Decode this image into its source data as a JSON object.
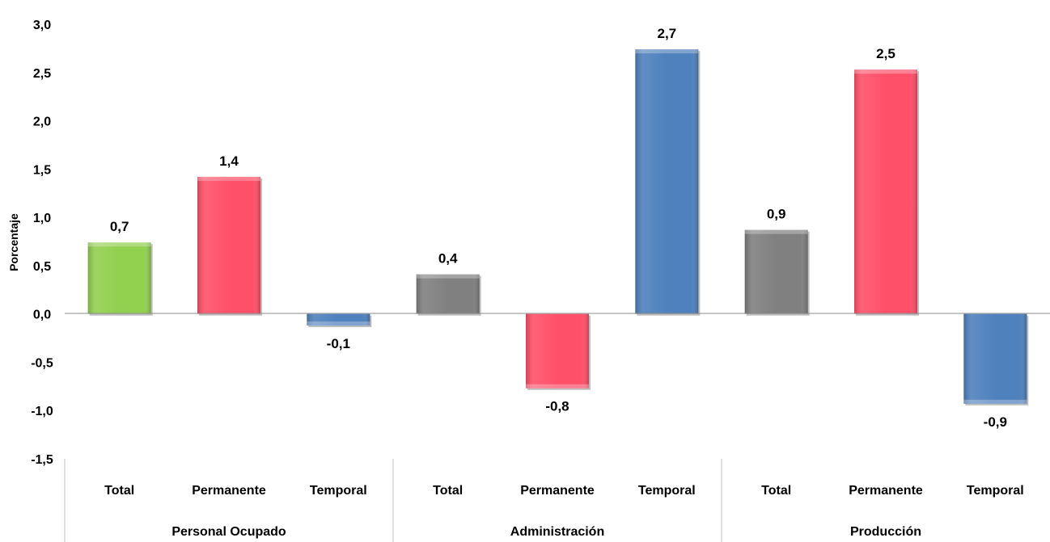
{
  "chart_data": {
    "type": "bar",
    "ylabel": "Porcentaje",
    "ylim": [
      -1.5,
      3.0
    ],
    "yticks": [
      3.0,
      2.5,
      2.0,
      1.5,
      1.0,
      0.5,
      0.0,
      -0.5,
      -1.0,
      -1.5
    ],
    "ytick_labels": [
      "3,0",
      "2,5",
      "2,0",
      "1,5",
      "1,0",
      "0,5",
      "0,0",
      "-0,5",
      "-1,0",
      "-1,5"
    ],
    "grid": false,
    "legend": "none",
    "groups": [
      {
        "name": "Personal Ocupado",
        "bars": [
          {
            "category": "Total",
            "value": 0.74,
            "label": "0,7",
            "color": "#92d050"
          },
          {
            "category": "Permanente",
            "value": 1.42,
            "label": "1,4",
            "color": "#ff5069"
          },
          {
            "category": "Temporal",
            "value": -0.12,
            "label": "-0,1",
            "color": "#4f81bd"
          }
        ]
      },
      {
        "name": "Administración",
        "bars": [
          {
            "category": "Total",
            "value": 0.41,
            "label": "0,4",
            "color": "#808080"
          },
          {
            "category": "Permanente",
            "value": -0.77,
            "label": "-0,8",
            "color": "#ff5069"
          },
          {
            "category": "Temporal",
            "value": 2.74,
            "label": "2,7",
            "color": "#4f81bd"
          }
        ]
      },
      {
        "name": "Producción",
        "bars": [
          {
            "category": "Total",
            "value": 0.87,
            "label": "0,9",
            "color": "#808080"
          },
          {
            "category": "Permanente",
            "value": 2.53,
            "label": "2,5",
            "color": "#ff5069"
          },
          {
            "category": "Temporal",
            "value": -0.93,
            "label": "-0,9",
            "color": "#4f81bd"
          }
        ]
      }
    ]
  }
}
